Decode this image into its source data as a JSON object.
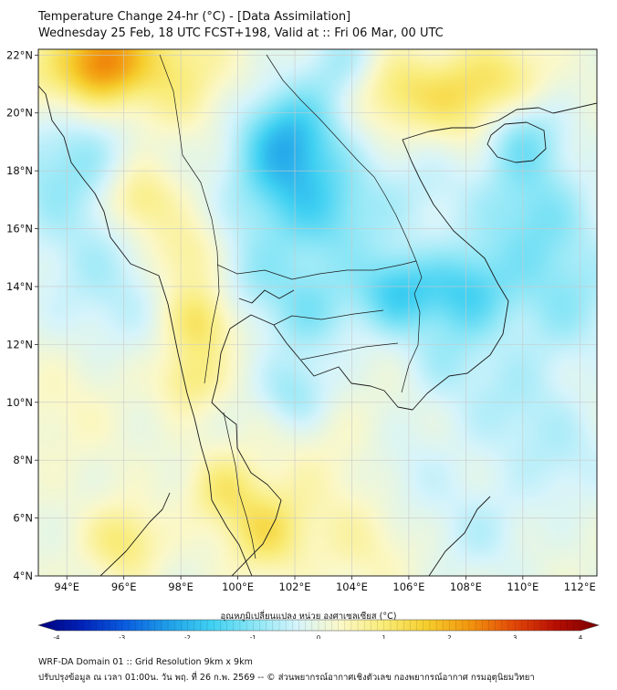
{
  "header": {
    "title_line1": "Temperature Change 24-hr (°C) - [Data Assimilation]",
    "title_line2": "Wednesday 25 Feb, 18 UTC FCST+198, Valid at :: Fri 06 Mar, 00 UTC"
  },
  "map": {
    "lat_labels": [
      "22°N",
      "20°N",
      "18°N",
      "16°N",
      "14°N",
      "12°N",
      "10°N",
      "8°N",
      "6°N",
      "4°N"
    ],
    "lon_labels": [
      "94°E",
      "96°E",
      "98°E",
      "100°E",
      "102°E",
      "104°E",
      "106°E",
      "108°E",
      "110°E",
      "112°E"
    ],
    "lat_range": [
      4,
      22.2
    ],
    "lon_range": [
      93,
      112.6
    ],
    "field_blobs": [
      {
        "lon": 95.2,
        "lat": 21.8,
        "value": 2.0,
        "spread": 1.0
      },
      {
        "lon": 97.5,
        "lat": 21.5,
        "value": 0.9,
        "spread": 1.5
      },
      {
        "lon": 93.2,
        "lat": 21.0,
        "value": 0.7,
        "spread": 1.1
      },
      {
        "lon": 94.0,
        "lat": 18.2,
        "value": -0.9,
        "spread": 1.8
      },
      {
        "lon": 95.5,
        "lat": 14.0,
        "value": -0.6,
        "spread": 1.8
      },
      {
        "lon": 96.5,
        "lat": 17.0,
        "value": 1.1,
        "spread": 0.9
      },
      {
        "lon": 98.2,
        "lat": 15.0,
        "value": 0.9,
        "spread": 1.0
      },
      {
        "lon": 98.7,
        "lat": 12.8,
        "value": 1.1,
        "spread": 0.9
      },
      {
        "lon": 98.3,
        "lat": 10.8,
        "value": 0.8,
        "spread": 0.8
      },
      {
        "lon": 99.5,
        "lat": 7.0,
        "value": 0.8,
        "spread": 0.9
      },
      {
        "lon": 101.0,
        "lat": 5.5,
        "value": 1.0,
        "spread": 1.0
      },
      {
        "lon": 103.0,
        "lat": 7.5,
        "value": 0.3,
        "spread": 1.6
      },
      {
        "lon": 96.0,
        "lat": 5.2,
        "value": 0.9,
        "spread": 0.9
      },
      {
        "lon": 94.0,
        "lat": 10.0,
        "value": 0.3,
        "spread": 1.5
      },
      {
        "lon": 105.5,
        "lat": 20.8,
        "value": 0.9,
        "spread": 1.0
      },
      {
        "lon": 107.8,
        "lat": 20.5,
        "value": 1.0,
        "spread": 1.1
      },
      {
        "lon": 109.5,
        "lat": 21.3,
        "value": 0.7,
        "spread": 1.0
      },
      {
        "lon": 103.7,
        "lat": 21.7,
        "value": -0.7,
        "spread": 1.0
      },
      {
        "lon": 101.8,
        "lat": 19.3,
        "value": -1.4,
        "spread": 1.2
      },
      {
        "lon": 101.5,
        "lat": 17.5,
        "value": -1.0,
        "spread": 1.4
      },
      {
        "lon": 103.5,
        "lat": 16.5,
        "value": -0.9,
        "spread": 1.4
      },
      {
        "lon": 100.2,
        "lat": 14.5,
        "value": -0.6,
        "spread": 1.2
      },
      {
        "lon": 102.5,
        "lat": 13.2,
        "value": -0.9,
        "spread": 1.2
      },
      {
        "lon": 105.6,
        "lat": 13.8,
        "value": -1.4,
        "spread": 1.0
      },
      {
        "lon": 108.0,
        "lat": 13.8,
        "value": -1.3,
        "spread": 1.1
      },
      {
        "lon": 107.2,
        "lat": 11.5,
        "value": -0.5,
        "spread": 1.0
      },
      {
        "lon": 102.0,
        "lat": 10.3,
        "value": -0.8,
        "spread": 0.9
      },
      {
        "lon": 110.0,
        "lat": 19.2,
        "value": -0.9,
        "spread": 1.0
      },
      {
        "lon": 110.3,
        "lat": 16.5,
        "value": -1.0,
        "spread": 1.5
      },
      {
        "lon": 111.5,
        "lat": 13.5,
        "value": -0.8,
        "spread": 1.5
      },
      {
        "lon": 106.5,
        "lat": 17.5,
        "value": -0.4,
        "spread": 1.2
      },
      {
        "lon": 109.5,
        "lat": 10.0,
        "value": -0.6,
        "spread": 1.4
      },
      {
        "lon": 111.5,
        "lat": 8.0,
        "value": -0.5,
        "spread": 1.3
      },
      {
        "lon": 106.0,
        "lat": 7.5,
        "value": -0.4,
        "spread": 1.2
      },
      {
        "lon": 108.5,
        "lat": 5.5,
        "value": -0.5,
        "spread": 1.2
      },
      {
        "lon": 104.5,
        "lat": 5.0,
        "value": 0.4,
        "spread": 1.2
      }
    ]
  },
  "colorbar": {
    "label": "อุณหภูมิเปลี่ยนแปลง หน่วย องศาเซลเซียส (°C)",
    "ticks": [
      "-4",
      "-3",
      "-2",
      "-1",
      "0",
      "1",
      "2",
      "3",
      "4"
    ],
    "min": -4,
    "max": 4,
    "colors": [
      "#00007a",
      "#0022b8",
      "#0a5ce0",
      "#1f9ee8",
      "#3ed0f2",
      "#8ae6f6",
      "#d6f4fb",
      "#fbf8c8",
      "#f9ec78",
      "#f6ce2c",
      "#f2960e",
      "#e34a08",
      "#b80e02",
      "#780000"
    ]
  },
  "footer": {
    "line1": "WRF-DA Domain 01 :: Grid Resolution 9km x 9km",
    "line2": "ปรับปรุงข้อมูล ณ เวลา 01:00น. วัน พฤ. ที่ 26 ก.พ. 2569 -- © ส่วนพยากรณ์อากาศเชิงตัวเลข กองพยากรณ์อากาศ กรมอุตุนิยมวิทยา"
  }
}
